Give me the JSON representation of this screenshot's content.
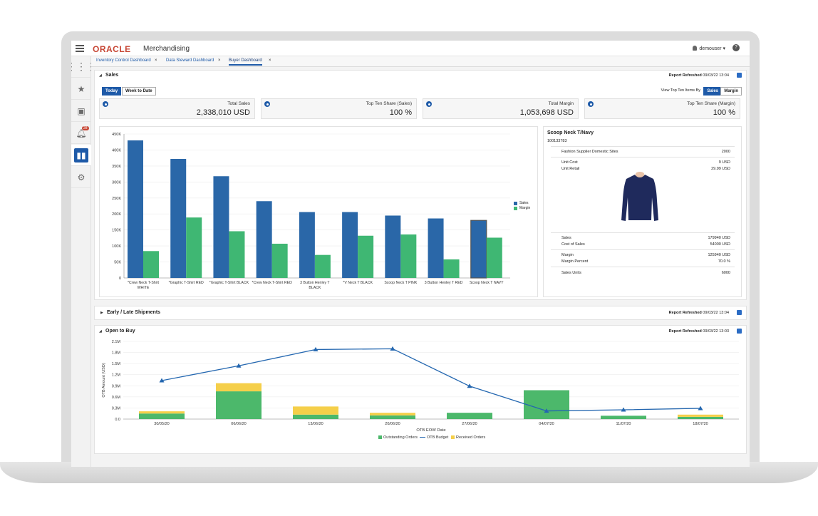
{
  "header": {
    "brand": "ORACLE",
    "product": "Merchandising",
    "user": "demouser ▾",
    "help": "?"
  },
  "rail": {
    "notification_count": "28"
  },
  "tabs": [
    {
      "label": "Inventory Control Dashboard",
      "close": "×"
    },
    {
      "label": "Data Steward Dashboard",
      "close": "×"
    },
    {
      "label": "Buyer Dashboard",
      "close": "×"
    }
  ],
  "sales": {
    "title": "Sales",
    "refreshed_label": "Report Refreshed",
    "refreshed_time": "09/03/22 13:04",
    "today_btn": "Today",
    "week_btn": "Week to Date",
    "view_top_label": "View Top Ten Items By",
    "sales_btn": "Sales",
    "margin_btn": "Margin",
    "kpis": [
      {
        "label": "Total Sales",
        "value": "2,338,010 USD"
      },
      {
        "label": "Top Ten Share (Sales)",
        "value": "100 %"
      },
      {
        "label": "Total Margin",
        "value": "1,053,698 USD"
      },
      {
        "label": "Top Ten Share (Margin)",
        "value": "100 %"
      }
    ]
  },
  "chart_data": [
    {
      "type": "bar",
      "categories": [
        "*Crew Neck T-Shirt WHITE",
        "*Graphic T-Shirt RED",
        "*Graphic T-Shirt BLACK",
        "*Crew Neck T-Shirt RED",
        "3 Button Henley T BLACK",
        "*V Neck T BLACK",
        "Scoop Neck T PINK",
        "3 Button Henley T RED",
        "Scoop Neck T NAVY"
      ],
      "category_lines": [
        [
          "*Crew Neck T-Shirt",
          "WHITE"
        ],
        [
          "*Graphic T-Shirt RED"
        ],
        [
          "*Graphic T-Shirt BLACK"
        ],
        [
          "*Crew Neck T-Shirt RED"
        ],
        [
          "3 Button Henley T",
          "BLACK"
        ],
        [
          "*V Neck T BLACK"
        ],
        [
          "Scoop Neck T PINK"
        ],
        [
          "3 Button Henley T RED"
        ],
        [
          "Scoop Neck T NAVY"
        ]
      ],
      "series": [
        {
          "name": "Sales",
          "values": [
            430000,
            372000,
            318000,
            240000,
            206000,
            206000,
            195000,
            186000,
            179940
          ],
          "color": "#2a67a8"
        },
        {
          "name": "Margin",
          "values": [
            84000,
            189000,
            146000,
            107000,
            72000,
            132000,
            136000,
            58000,
            125940
          ],
          "color": "#3fb773"
        }
      ],
      "ylim": [
        0,
        450000
      ],
      "yticks": [
        "0",
        "50K",
        "100K",
        "150K",
        "200K",
        "250K",
        "300K",
        "350K",
        "400K",
        "450K"
      ],
      "legend": "right",
      "grid": true
    },
    {
      "type": "bar+line",
      "x": [
        "30/05/20",
        "06/06/20",
        "13/06/20",
        "20/06/20",
        "27/06/20",
        "04/07/20",
        "11/07/20",
        "18/07/20"
      ],
      "series": [
        {
          "name": "Outstanding Orders",
          "type": "bar",
          "values": [
            150000,
            750000,
            120000,
            100000,
            170000,
            780000,
            90000,
            60000
          ],
          "color": "#4cb86b"
        },
        {
          "name": "Received Orders",
          "type": "bar",
          "values": [
            60000,
            220000,
            220000,
            70000,
            0,
            0,
            0,
            60000
          ],
          "color": "#f5cf4a"
        },
        {
          "name": "OTB Budget",
          "type": "line",
          "values": [
            1040000,
            1440000,
            1880000,
            1900000,
            890000,
            220000,
            250000,
            290000
          ],
          "color": "#2467b0"
        }
      ],
      "ylim": [
        0,
        2100000
      ],
      "yticks": [
        "0.0",
        "0.3M",
        "0.6M",
        "0.9M",
        "1.2M",
        "1.5M",
        "1.8M",
        "2.1M"
      ],
      "xlabel": "OTB EOW Date",
      "ylabel": "OTB Amount (USD)",
      "legend": "bottom",
      "grid": true
    }
  ],
  "legend": {
    "sales": "Sales",
    "margin": "Margin",
    "outstanding": "Outstanding Orders",
    "otb_budget": "OTB Budget",
    "received": "Received Orders"
  },
  "product": {
    "name": "Scoop Neck T/Navy",
    "id": "100133783",
    "supplier_label": "Fashion Supplier Domestic Sites",
    "supplier_value": "2000",
    "unit_cost_label": "Unit Cost",
    "unit_cost_value": "9 USD",
    "unit_retail_label": "Unit Retail",
    "unit_retail_value": "29.99 USD",
    "sales_label": "Sales",
    "sales_value": "179940 USD",
    "cost_of_sales_label": "Cost of Sales",
    "cost_of_sales_value": "54000 USD",
    "margin_label": "Margin",
    "margin_value": "125940 USD",
    "margin_pct_label": "Margin Percent",
    "margin_pct_value": "70.0 %",
    "sales_units_label": "Sales Units",
    "sales_units_value": "6000"
  },
  "shipments": {
    "title": "Early / Late Shipments",
    "refreshed_label": "Report Refreshed",
    "refreshed_time": "09/03/22 13:04"
  },
  "otb": {
    "title": "Open to Buy",
    "refreshed_label": "Report Refreshed",
    "refreshed_time": "09/03/22 13:03"
  }
}
